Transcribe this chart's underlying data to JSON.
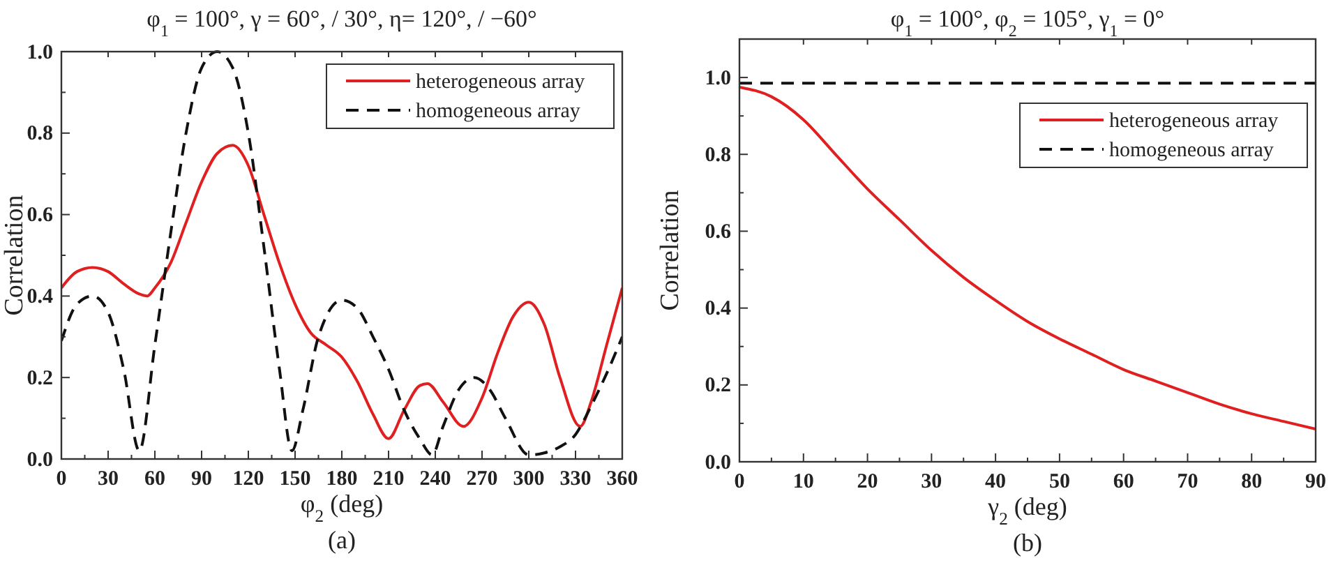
{
  "chart_data": [
    {
      "type": "line",
      "title": "φ$_{1}$ = 100°,  γ = 60°, / 30°,  η= 120°, / −60°",
      "xlabel": "φ$_{2}$ (deg)",
      "ylabel": "Correlation",
      "annotations": [
        "(a)"
      ],
      "xlim": [
        0,
        360
      ],
      "xticks": [
        0,
        30,
        60,
        90,
        120,
        150,
        180,
        210,
        240,
        270,
        300,
        330,
        360
      ],
      "ylim": [
        0,
        1
      ],
      "yticks": [
        {
          "value": 0,
          "label": "0.0"
        },
        {
          "value": 0.2,
          "label": "0.2"
        },
        {
          "value": 0.4,
          "label": "0.4"
        },
        {
          "value": 0.6,
          "label": "0.6"
        },
        {
          "value": 0.8,
          "label": "0.8"
        },
        {
          "value": 1,
          "label": "1.0"
        }
      ],
      "grid": false,
      "legend": "top right",
      "series": [
        {
          "name": "heterogeneous array",
          "color": "#e02020",
          "line_style": "solid",
          "x": [
            0,
            10,
            20,
            30,
            40,
            50,
            55,
            60,
            70,
            80,
            90,
            100,
            110,
            120,
            130,
            140,
            150,
            160,
            170,
            180,
            190,
            200,
            210,
            220,
            230,
            235,
            245,
            258,
            270,
            280,
            290,
            300,
            310,
            320,
            333,
            340,
            350,
            360
          ],
          "values": [
            0.42,
            0.46,
            0.47,
            0.46,
            0.43,
            0.405,
            0.4,
            0.42,
            0.48,
            0.58,
            0.68,
            0.75,
            0.77,
            0.72,
            0.6,
            0.48,
            0.38,
            0.31,
            0.28,
            0.25,
            0.19,
            0.11,
            0.05,
            0.12,
            0.18,
            0.185,
            0.14,
            0.08,
            0.15,
            0.26,
            0.35,
            0.385,
            0.33,
            0.2,
            0.08,
            0.14,
            0.28,
            0.42
          ]
        },
        {
          "name": "homogeneous array",
          "color": "#111111",
          "line_style": "dashed",
          "x": [
            0,
            10,
            20,
            30,
            40,
            50,
            60,
            70,
            80,
            90,
            100,
            110,
            120,
            130,
            140,
            148,
            155,
            165,
            180,
            190,
            200,
            210,
            220,
            230,
            238,
            245,
            255,
            265,
            275,
            285,
            300,
            310,
            320,
            330,
            340,
            350,
            360
          ],
          "values": [
            0.29,
            0.38,
            0.4,
            0.36,
            0.22,
            0.02,
            0.28,
            0.55,
            0.8,
            0.96,
            1.0,
            0.96,
            0.8,
            0.52,
            0.22,
            0.02,
            0.12,
            0.3,
            0.39,
            0.37,
            0.3,
            0.22,
            0.12,
            0.05,
            0.01,
            0.08,
            0.17,
            0.2,
            0.17,
            0.1,
            0.01,
            0.015,
            0.03,
            0.06,
            0.13,
            0.21,
            0.3
          ]
        }
      ]
    },
    {
      "type": "line",
      "title": "φ$_{1}$ = 100°,  φ$_{2}$ = 105°,  γ$_{1}$ = 0°",
      "xlabel": "γ$_{2}$ (deg)",
      "ylabel": "Correlation",
      "annotations": [
        "(b)"
      ],
      "xlim": [
        0,
        90
      ],
      "xticks": [
        0,
        10,
        20,
        30,
        40,
        50,
        60,
        70,
        80,
        90
      ],
      "ylim": [
        0,
        1.1
      ],
      "yticks": [
        {
          "value": 0,
          "label": "0.0"
        },
        {
          "value": 0.2,
          "label": "0.2"
        },
        {
          "value": 0.4,
          "label": "0.4"
        },
        {
          "value": 0.6,
          "label": "0.6"
        },
        {
          "value": 0.8,
          "label": "0.8"
        },
        {
          "value": 1,
          "label": "1.0"
        }
      ],
      "grid": false,
      "legend": "top right",
      "series": [
        {
          "name": "heterogeneous array",
          "color": "#e02020",
          "line_style": "solid",
          "x": [
            0,
            5,
            10,
            15,
            20,
            25,
            30,
            35,
            40,
            45,
            50,
            55,
            60,
            65,
            70,
            75,
            80,
            85,
            90
          ],
          "values": [
            0.975,
            0.95,
            0.89,
            0.8,
            0.71,
            0.63,
            0.55,
            0.48,
            0.42,
            0.365,
            0.32,
            0.28,
            0.24,
            0.21,
            0.18,
            0.15,
            0.125,
            0.105,
            0.085
          ]
        },
        {
          "name": "homogeneous array",
          "color": "#111111",
          "line_style": "dashed",
          "x": [
            0,
            90
          ],
          "values": [
            0.985,
            0.985
          ]
        }
      ]
    }
  ]
}
